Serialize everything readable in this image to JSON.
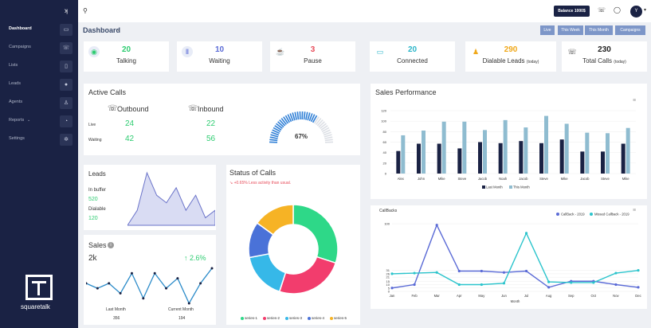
{
  "sidebar": {
    "items": [
      {
        "label": "Dashboard",
        "icon": "monitor-icon"
      },
      {
        "label": "Campaigns",
        "icon": "phone-icon"
      },
      {
        "label": "Lists",
        "icon": "file-icon"
      },
      {
        "label": "Leads",
        "icon": "chat-icon"
      },
      {
        "label": "Agents",
        "icon": "user-icon"
      },
      {
        "label": "Reports",
        "arrow": "⌄",
        "icon": "clock-icon"
      },
      {
        "label": "Settings",
        "icon": "gear-icon"
      }
    ],
    "logo_text": "squaretalk"
  },
  "topbar": {
    "balance": "Balance 1000$",
    "avatar": "Y"
  },
  "header": {
    "title": "Dashboard",
    "filters": [
      "Live",
      "This Week",
      "This Month",
      "Campaigns"
    ]
  },
  "stats": [
    {
      "value": "20",
      "label": "Talking",
      "icon": "headset-icon",
      "color": "#2ecc71"
    },
    {
      "value": "10",
      "label": "Waiting",
      "icon": "pause-icon",
      "color": "#5b6bd6"
    },
    {
      "value": "3",
      "label": "Pause",
      "icon": "coffee-icon",
      "color": "#e74c5a"
    },
    {
      "value": "20",
      "label": "Connected",
      "icon": "monitor-icon",
      "color": "#2bb5c9"
    },
    {
      "value": "290",
      "label": "Dialable Leads",
      "sub": "(today)",
      "icon": "person-icon",
      "color": "#f0a81a"
    },
    {
      "value": "230",
      "label": "Total Calls",
      "sub": "(today)",
      "icon": "call-icon",
      "color": "#222"
    }
  ],
  "active_calls": {
    "title": "Active Calls",
    "outbound": "Outbound",
    "inbound": "Inbound",
    "live_label": "Live",
    "waiting_label": "Waiting",
    "outbound_live": "24",
    "outbound_waiting": "42",
    "inbound_live": "22",
    "inbound_waiting": "56",
    "gauge": "67%",
    "gauge_value": 0.67
  },
  "leads": {
    "title": "Leads",
    "in_buffer": "In buffer",
    "in_buffer_value": "520",
    "dialable": "Dialable",
    "dialable_value": "120",
    "spark": [
      1,
      3,
      8,
      5,
      4,
      6,
      3,
      5,
      2,
      3
    ]
  },
  "sales": {
    "title": "Sales",
    "value": "2k",
    "change": "↑ 2.6%",
    "last_month": "Last Month",
    "last_month_value": "356",
    "current_month": "Current Month",
    "current_month_value": "194",
    "spark": [
      5,
      4,
      5,
      3,
      7,
      2,
      7,
      4,
      6,
      1,
      5,
      8
    ]
  },
  "status_of_calls": {
    "title": "Status of Calls",
    "note": "↘ +0.65% Less activity than usual."
  },
  "chart_data": [
    {
      "type": "bar",
      "title": "Sales Performance",
      "categories": [
        "Alex",
        "John",
        "Mike",
        "Steve",
        "Jacob",
        "Noah",
        "Jacob",
        "Steve",
        "Mike",
        "Jacob",
        "Steve",
        "Mike"
      ],
      "series": [
        {
          "name": "Last Month",
          "color": "#1a2244",
          "values": [
            43,
            57,
            57,
            48,
            60,
            58,
            62,
            58,
            65,
            42,
            42,
            57
          ]
        },
        {
          "name": "This Month",
          "color": "#8fbcd0",
          "values": [
            73,
            82,
            99,
            99,
            83,
            102,
            88,
            110,
            95,
            78,
            77,
            87
          ]
        }
      ],
      "ylim": [
        0,
        120
      ],
      "yticks": [
        0,
        20,
        40,
        60,
        80,
        100,
        120
      ],
      "legend": "bottom"
    },
    {
      "type": "line",
      "title": "CallBacks",
      "categories": [
        "Jan",
        "Feb",
        "Mar",
        "Apr",
        "May",
        "Jun",
        "Jul",
        "Aug",
        "Sep",
        "Oct",
        "Nov",
        "Dec"
      ],
      "xlabel": "Month",
      "series": [
        {
          "name": "CallBack - 2019",
          "color": "#5b6bd6",
          "values": [
            5,
            10,
            98,
            30,
            30,
            28,
            30,
            6,
            15,
            15,
            10,
            6
          ]
        },
        {
          "name": "Missed Callback - 2019",
          "color": "#2bc4cc",
          "values": [
            26,
            27,
            28,
            10,
            10,
            12,
            86,
            14,
            13,
            13,
            27,
            31
          ]
        }
      ],
      "ylim": [
        0,
        100
      ],
      "yticks": [
        0,
        5,
        10,
        15,
        21,
        26,
        31,
        100
      ],
      "legend": "top-right"
    },
    {
      "type": "pie",
      "title": "Status of Calls",
      "series": [
        {
          "name": "series-1",
          "value": 30,
          "color": "#2ed888"
        },
        {
          "name": "series-2",
          "value": 25,
          "color": "#f23d6d"
        },
        {
          "name": "series-3",
          "value": 17,
          "color": "#36b8e8"
        },
        {
          "name": "series-4",
          "value": 13,
          "color": "#4a72d8"
        },
        {
          "name": "series-5",
          "value": 15,
          "color": "#f6b325"
        }
      ],
      "legend": "bottom"
    }
  ]
}
